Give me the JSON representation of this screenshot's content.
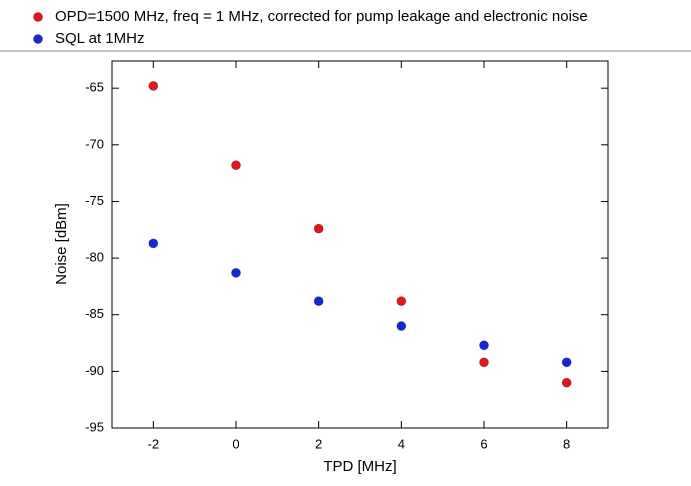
{
  "chart_data": {
    "type": "scatter",
    "x_label": "TPD [MHz]",
    "y_label": "Noise [dBm]",
    "xlim": [
      -3,
      9
    ],
    "xticks": [
      -2,
      0,
      2,
      4,
      6,
      8
    ],
    "ylim": [
      -95,
      -62.6
    ],
    "yticks": [
      -95,
      -90,
      -85,
      -80,
      -75,
      -70,
      -65
    ],
    "series": [
      {
        "name": "OPD=1500 MHz, freq = 1 MHz, corrected for pump leakage and electronic noise",
        "color": "#e8141c",
        "x": [
          -2,
          0,
          2,
          4,
          6,
          8
        ],
        "values": [
          -64.8,
          -71.8,
          -77.4,
          -83.8,
          -89.2,
          -91.0
        ]
      },
      {
        "name": "SQL at 1MHz",
        "color": "#1428d8",
        "x": [
          -2,
          0,
          2,
          4,
          6,
          8
        ],
        "values": [
          -78.7,
          -81.3,
          -83.8,
          -86.0,
          -87.7,
          -89.2
        ]
      }
    ]
  }
}
